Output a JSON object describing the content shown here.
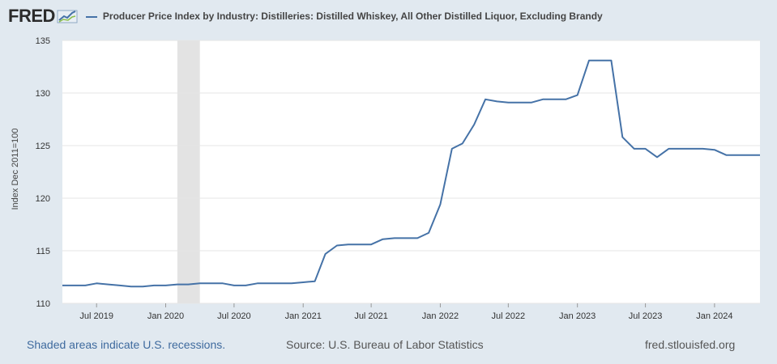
{
  "header": {
    "logo_text": "FRED",
    "logo_icon": "chart-line-icon",
    "series_title": "Producer Price Index by Industry: Distilleries: Distilled Whiskey, All Other Distilled Liquor, Excluding Brandy"
  },
  "footer": {
    "recession_note": "Shaded areas indicate U.S. recessions.",
    "source": "Source: U.S. Bureau of Labor Statistics",
    "site": "fred.stlouisfed.org"
  },
  "colors": {
    "line": "#4572a7",
    "recession": "#e3e3e3",
    "background": "#e1e9f0",
    "plot": "#ffffff",
    "grid": "#e6e6e6"
  },
  "chart_data": {
    "type": "line",
    "title": "Producer Price Index by Industry: Distilleries: Distilled Whiskey, All Other Distilled Liquor, Excluding Brandy",
    "xlabel": "",
    "ylabel": "Index Dec 2011=100",
    "ylim": [
      110,
      135
    ],
    "yticks": [
      110,
      115,
      120,
      125,
      130,
      135
    ],
    "xlim": [
      "2019-04-01",
      "2024-05-01"
    ],
    "xticks": [
      {
        "date": "2019-07-01",
        "label": "Jul 2019"
      },
      {
        "date": "2020-01-01",
        "label": "Jan 2020"
      },
      {
        "date": "2020-07-01",
        "label": "Jul 2020"
      },
      {
        "date": "2021-01-01",
        "label": "Jan 2021"
      },
      {
        "date": "2021-07-01",
        "label": "Jul 2021"
      },
      {
        "date": "2022-01-01",
        "label": "Jan 2022"
      },
      {
        "date": "2022-07-01",
        "label": "Jul 2022"
      },
      {
        "date": "2023-01-01",
        "label": "Jan 2023"
      },
      {
        "date": "2023-07-01",
        "label": "Jul 2023"
      },
      {
        "date": "2024-01-01",
        "label": "Jan 2024"
      }
    ],
    "grid": true,
    "legend_position": "top",
    "recessions": [
      {
        "start": "2020-02-01",
        "end": "2020-04-01"
      }
    ],
    "series": [
      {
        "name": "Producer Price Index by Industry: Distilleries: Distilled Whiskey, All Other Distilled Liquor, Excluding Brandy",
        "x": [
          "2019-04-01",
          "2019-05-01",
          "2019-06-01",
          "2019-07-01",
          "2019-08-01",
          "2019-09-01",
          "2019-10-01",
          "2019-11-01",
          "2019-12-01",
          "2020-01-01",
          "2020-02-01",
          "2020-03-01",
          "2020-04-01",
          "2020-05-01",
          "2020-06-01",
          "2020-07-01",
          "2020-08-01",
          "2020-09-01",
          "2020-10-01",
          "2020-11-01",
          "2020-12-01",
          "2021-01-01",
          "2021-02-01",
          "2021-03-01",
          "2021-04-01",
          "2021-05-01",
          "2021-06-01",
          "2021-07-01",
          "2021-08-01",
          "2021-09-01",
          "2021-10-01",
          "2021-11-01",
          "2021-12-01",
          "2022-01-01",
          "2022-02-01",
          "2022-03-01",
          "2022-04-01",
          "2022-05-01",
          "2022-06-01",
          "2022-07-01",
          "2022-08-01",
          "2022-09-01",
          "2022-10-01",
          "2022-11-01",
          "2022-12-01",
          "2023-01-01",
          "2023-02-01",
          "2023-03-01",
          "2023-04-01",
          "2023-05-01",
          "2023-06-01",
          "2023-07-01",
          "2023-08-01",
          "2023-09-01",
          "2023-10-01",
          "2023-11-01",
          "2023-12-01",
          "2024-01-01",
          "2024-02-01",
          "2024-03-01",
          "2024-04-01",
          "2024-05-01"
        ],
        "values": [
          111.7,
          111.7,
          111.7,
          111.9,
          111.8,
          111.7,
          111.6,
          111.6,
          111.7,
          111.7,
          111.8,
          111.8,
          111.9,
          111.9,
          111.9,
          111.7,
          111.7,
          111.9,
          111.9,
          111.9,
          111.9,
          112.0,
          112.1,
          114.7,
          115.5,
          115.6,
          115.6,
          115.6,
          116.1,
          116.2,
          116.2,
          116.2,
          116.7,
          119.4,
          124.7,
          125.2,
          127.0,
          129.4,
          129.2,
          129.1,
          129.1,
          129.1,
          129.4,
          129.4,
          129.4,
          129.8,
          133.1,
          133.1,
          133.1,
          125.8,
          124.7,
          124.7,
          123.9,
          124.7,
          124.7,
          124.7,
          124.7,
          124.6,
          124.1,
          124.1,
          124.1,
          124.1
        ]
      }
    ]
  }
}
